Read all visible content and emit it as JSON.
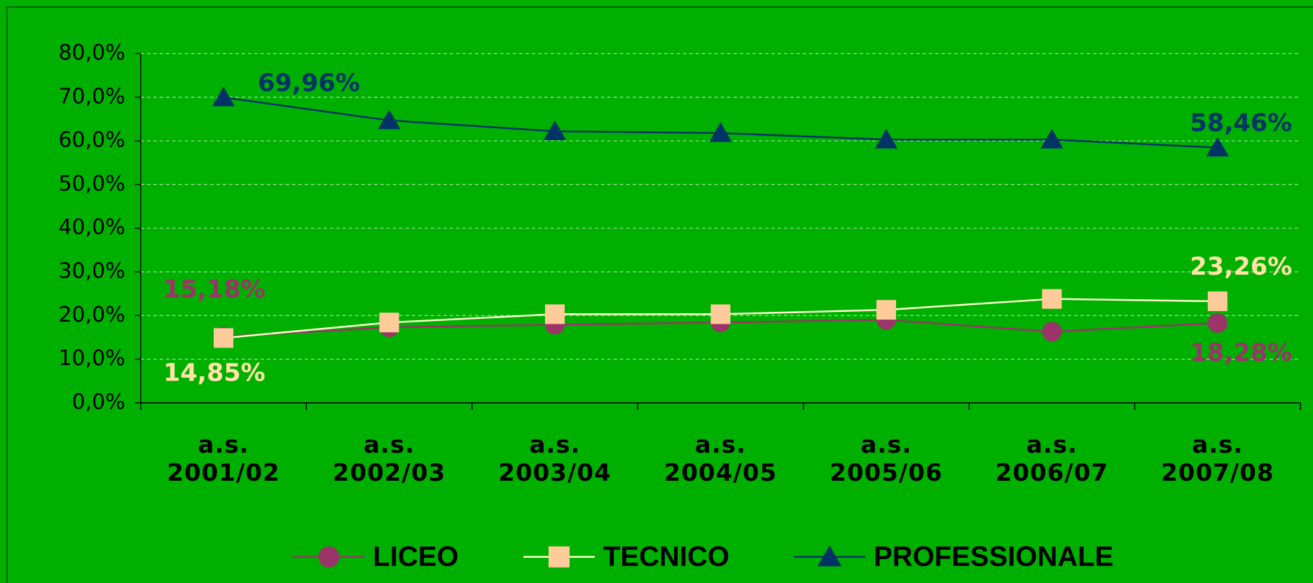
{
  "chart_data": {
    "type": "line",
    "categories": [
      "a.s.\n2001/02",
      "a.s.\n2002/03",
      "a.s.\n2003/04",
      "a.s.\n2004/05",
      "a.s.\n2005/06",
      "a.s.\n2006/07",
      "a.s.\n2007/08"
    ],
    "series": [
      {
        "name": "LICEO",
        "color": "#9b3468",
        "marker": "circle",
        "values": [
          15.18,
          17.3,
          17.9,
          18.4,
          19.0,
          16.3,
          18.28
        ],
        "value_labels": [
          "15,18%",
          null,
          null,
          null,
          null,
          null,
          "18,28%"
        ]
      },
      {
        "name": "TECNICO",
        "color": "#ffcc99",
        "marker": "square",
        "values": [
          14.85,
          18.4,
          20.3,
          20.3,
          21.3,
          23.8,
          23.26
        ],
        "value_labels": [
          "14,85%",
          null,
          null,
          null,
          null,
          null,
          "23,26%"
        ]
      },
      {
        "name": "PROFESSIONALE",
        "color": "#003366",
        "marker": "triangle",
        "values": [
          69.96,
          64.7,
          62.2,
          61.8,
          60.3,
          60.3,
          58.46
        ],
        "value_labels": [
          "69,96%",
          null,
          null,
          null,
          null,
          null,
          "58,46%"
        ]
      }
    ],
    "ylim": [
      0,
      80
    ],
    "yticks": [
      {
        "value": 0,
        "label": "0,0%"
      },
      {
        "value": 10,
        "label": "10,0%"
      },
      {
        "value": 20,
        "label": "20,0%"
      },
      {
        "value": 30,
        "label": "30,0%"
      },
      {
        "value": 40,
        "label": "40,0%"
      },
      {
        "value": 50,
        "label": "50,0%"
      },
      {
        "value": 60,
        "label": "60,0%"
      },
      {
        "value": 70,
        "label": "70,0%"
      },
      {
        "value": 80,
        "label": "80,0%"
      }
    ],
    "grid": true,
    "legend": "bottom"
  }
}
